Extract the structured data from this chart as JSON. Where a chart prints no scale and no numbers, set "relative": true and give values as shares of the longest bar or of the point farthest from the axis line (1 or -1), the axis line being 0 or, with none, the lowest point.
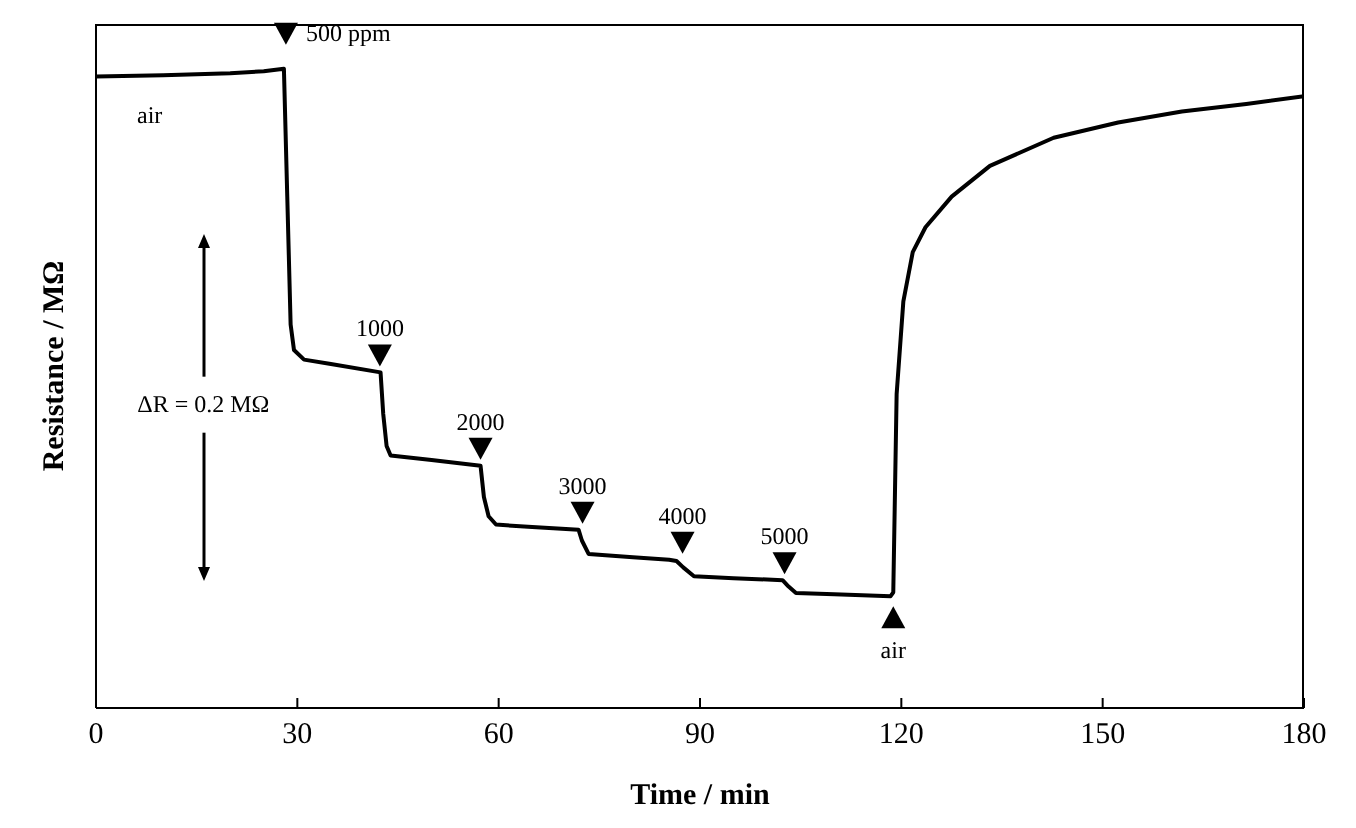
{
  "chart_data": {
    "type": "line",
    "relative": true,
    "xlabel": "Time / min",
    "ylabel": "Resistance / MΩ",
    "xlim": [
      0,
      180
    ],
    "xticks": [
      0,
      30,
      60,
      90,
      120,
      150,
      180
    ],
    "grid": false,
    "legend": false,
    "marker": "none",
    "line_style": "solid",
    "series": [
      {
        "color": "#000000",
        "x": [
          0,
          10,
          20,
          25,
          28,
          28.5,
          29,
          29.5,
          31,
          35,
          42.4,
          42.8,
          43.3,
          43.9,
          50,
          57.3,
          57.8,
          58.5,
          59.6,
          65,
          71.9,
          72.4,
          73.4,
          80,
          85.4,
          86.5,
          87.5,
          89.1,
          95,
          102.3,
          103.2,
          104.3,
          110,
          118.4,
          118.8,
          119.3,
          120.3,
          121.7,
          123.6,
          127.5,
          133.2,
          142.7,
          152.3,
          161.8,
          171.4,
          180
        ],
        "values": [
          0.988,
          0.99,
          0.993,
          0.996,
          1.0,
          0.8,
          0.6,
          0.56,
          0.545,
          0.538,
          0.525,
          0.46,
          0.41,
          0.395,
          0.388,
          0.379,
          0.33,
          0.3,
          0.287,
          0.283,
          0.279,
          0.262,
          0.241,
          0.236,
          0.232,
          0.23,
          0.22,
          0.206,
          0.203,
          0.2,
          0.19,
          0.18,
          0.178,
          0.175,
          0.181,
          0.491,
          0.636,
          0.713,
          0.752,
          0.8,
          0.848,
          0.892,
          0.916,
          0.933,
          0.945,
          0.957
        ]
      }
    ],
    "annotations": [
      {
        "text": "air",
        "x": 8,
        "y": 0.99
      },
      {
        "text": "500 ppm",
        "x": 28.3,
        "y": 1.0
      },
      {
        "text": "1000",
        "x": 42.3,
        "y": 0.525
      },
      {
        "text": "2000",
        "x": 57.3,
        "y": 0.379
      },
      {
        "text": "3000",
        "x": 72.5,
        "y": 0.279
      },
      {
        "text": "4000",
        "x": 87.4,
        "y": 0.232
      },
      {
        "text": "5000",
        "x": 102.6,
        "y": 0.2
      },
      {
        "text": "air",
        "x": 118.8,
        "y": 0.175
      },
      "ΔR = 0.2 MΩ"
    ]
  }
}
